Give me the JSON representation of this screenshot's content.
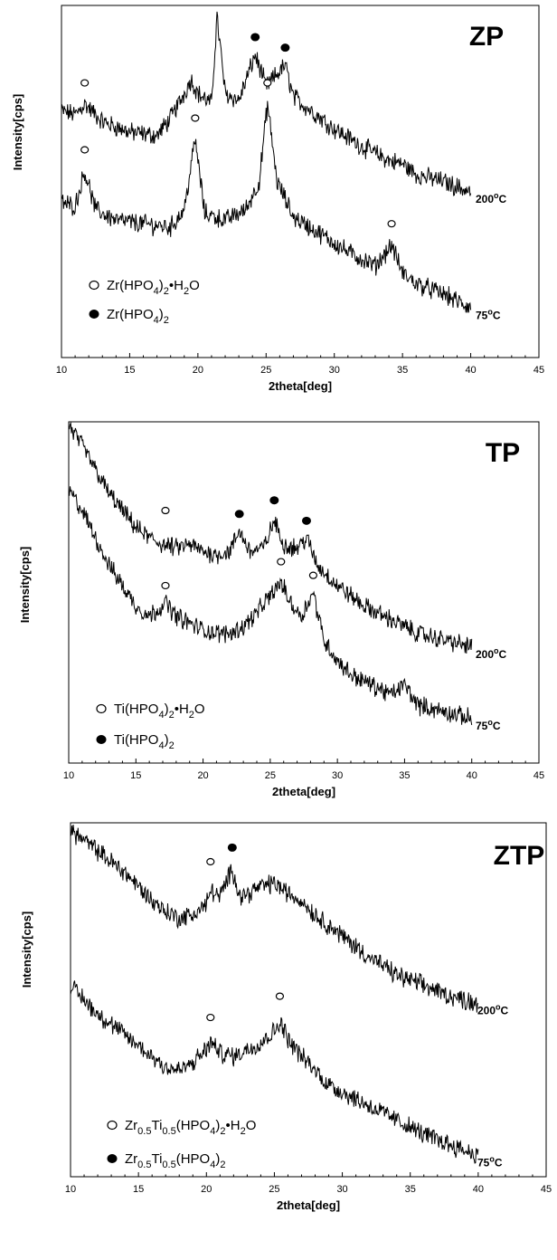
{
  "chart_data": [
    {
      "type": "line",
      "panel_label": "ZP",
      "xlabel": "2theta[deg]",
      "ylabel": "Intensity[cps]",
      "xlim": [
        10,
        45
      ],
      "xticks": [
        10,
        15,
        20,
        25,
        30,
        35,
        40,
        45
      ],
      "grid": false,
      "series": [
        {
          "name": "200°C",
          "temp_label": "200",
          "x": [
            10,
            11,
            11.7,
            13,
            15,
            17,
            18,
            19,
            19.5,
            20,
            21,
            21.4,
            22,
            23,
            24.2,
            25,
            26.4,
            27,
            28,
            30,
            32,
            34,
            35,
            36,
            37,
            38,
            40
          ],
          "y": [
            0.7,
            0.69,
            0.72,
            0.67,
            0.64,
            0.63,
            0.68,
            0.75,
            0.79,
            0.75,
            0.72,
            0.97,
            0.75,
            0.73,
            0.86,
            0.77,
            0.83,
            0.74,
            0.71,
            0.65,
            0.6,
            0.56,
            0.55,
            0.52,
            0.51,
            0.5,
            0.47
          ]
        },
        {
          "name": "75°C",
          "temp_label": "75",
          "x": [
            10,
            11,
            11.7,
            12.5,
            14,
            16,
            18,
            19,
            19.8,
            20.5,
            22,
            23.5,
            24.5,
            25.1,
            25.8,
            27,
            29,
            31,
            33,
            34.2,
            35,
            36,
            38,
            40
          ],
          "y": [
            0.44,
            0.43,
            0.53,
            0.42,
            0.39,
            0.38,
            0.37,
            0.42,
            0.62,
            0.41,
            0.39,
            0.42,
            0.5,
            0.72,
            0.5,
            0.4,
            0.35,
            0.3,
            0.26,
            0.32,
            0.24,
            0.21,
            0.18,
            0.14
          ]
        }
      ],
      "markers": [
        {
          "type": "open",
          "x": 11.7,
          "y": 0.78
        },
        {
          "type": "filled",
          "x": 21.4,
          "y": 1.03
        },
        {
          "type": "filled",
          "x": 24.2,
          "y": 0.91
        },
        {
          "type": "filled",
          "x": 26.4,
          "y": 0.88
        },
        {
          "type": "open",
          "x": 11.7,
          "y": 0.59
        },
        {
          "type": "open",
          "x": 19.8,
          "y": 0.68
        },
        {
          "type": "open",
          "x": 25.1,
          "y": 0.78
        },
        {
          "type": "open",
          "x": 34.2,
          "y": 0.38
        }
      ],
      "legend": [
        {
          "type": "open",
          "parts": [
            [
              "Zr(HPO",
              "n"
            ],
            [
              "4",
              "sub"
            ],
            [
              ")",
              "n"
            ],
            [
              "2",
              "sub"
            ],
            [
              "•H",
              "n"
            ],
            [
              "2",
              "sub"
            ],
            [
              "O",
              "n"
            ]
          ]
        },
        {
          "type": "filled",
          "parts": [
            [
              "Zr(HPO",
              "n"
            ],
            [
              "4",
              "sub"
            ],
            [
              ")",
              "n"
            ],
            [
              "2",
              "sub"
            ]
          ]
        }
      ]
    },
    {
      "type": "line",
      "panel_label": "TP",
      "xlabel": "2theta[deg]",
      "ylabel": "Intensity[cps]",
      "xlim": [
        10,
        45
      ],
      "xticks": [
        10,
        15,
        20,
        25,
        30,
        35,
        40,
        45
      ],
      "grid": false,
      "series": [
        {
          "name": "200°C",
          "temp_label": "200",
          "x": [
            10,
            11,
            12,
            13,
            14,
            15,
            16,
            17,
            18,
            19,
            20,
            21,
            22,
            22.7,
            23.5,
            24.5,
            25.3,
            26,
            27,
            27.7,
            28.5,
            30,
            32,
            34,
            36,
            38,
            40
          ],
          "y": [
            0.99,
            0.93,
            0.86,
            0.79,
            0.74,
            0.69,
            0.66,
            0.64,
            0.63,
            0.64,
            0.62,
            0.61,
            0.62,
            0.68,
            0.62,
            0.63,
            0.71,
            0.64,
            0.63,
            0.66,
            0.58,
            0.52,
            0.46,
            0.42,
            0.38,
            0.36,
            0.34
          ]
        },
        {
          "name": "75°C",
          "temp_label": "75",
          "x": [
            10,
            11,
            12,
            13,
            14,
            15,
            16,
            17.2,
            18,
            19,
            20,
            21,
            22,
            23,
            24,
            25,
            25.8,
            26.5,
            27.3,
            28.2,
            29,
            30,
            31,
            32,
            33,
            34,
            35,
            36,
            38,
            40
          ],
          "y": [
            0.8,
            0.74,
            0.66,
            0.58,
            0.52,
            0.46,
            0.43,
            0.47,
            0.43,
            0.41,
            0.39,
            0.38,
            0.38,
            0.4,
            0.44,
            0.49,
            0.53,
            0.47,
            0.43,
            0.5,
            0.36,
            0.3,
            0.26,
            0.24,
            0.22,
            0.2,
            0.23,
            0.17,
            0.15,
            0.13
          ]
        }
      ],
      "markers": [
        {
          "type": "open",
          "x": 17.2,
          "y": 0.74
        },
        {
          "type": "filled",
          "x": 22.7,
          "y": 0.73
        },
        {
          "type": "filled",
          "x": 25.3,
          "y": 0.77
        },
        {
          "type": "filled",
          "x": 27.7,
          "y": 0.71
        },
        {
          "type": "open",
          "x": 17.2,
          "y": 0.52
        },
        {
          "type": "open",
          "x": 25.8,
          "y": 0.59
        },
        {
          "type": "open",
          "x": 28.2,
          "y": 0.55
        }
      ],
      "legend": [
        {
          "type": "open",
          "parts": [
            [
              "Ti(HPO",
              "n"
            ],
            [
              "4",
              "sub"
            ],
            [
              ")",
              "n"
            ],
            [
              "2",
              "sub"
            ],
            [
              "•H",
              "n"
            ],
            [
              "2",
              "sub"
            ],
            [
              "O",
              "n"
            ]
          ]
        },
        {
          "type": "filled",
          "parts": [
            [
              "Ti(HPO",
              "n"
            ],
            [
              "4",
              "sub"
            ],
            [
              ")",
              "n"
            ],
            [
              "2",
              "sub"
            ]
          ]
        }
      ]
    },
    {
      "type": "line",
      "panel_label": "ZTP",
      "xlabel": "2theta[deg]",
      "ylabel": "Intensity[cps]",
      "xlim": [
        10,
        45
      ],
      "xticks": [
        10,
        15,
        20,
        25,
        30,
        35,
        40,
        45
      ],
      "grid": false,
      "series": [
        {
          "name": "200°C",
          "temp_label": "200",
          "x": [
            10,
            11,
            12,
            13,
            14,
            15,
            16,
            17,
            18,
            19,
            20,
            20.3,
            21,
            21.9,
            22.5,
            23,
            24,
            25,
            26,
            27,
            28,
            30,
            32,
            34,
            36,
            38,
            40
          ],
          "y": [
            0.98,
            0.95,
            0.92,
            0.89,
            0.86,
            0.82,
            0.78,
            0.75,
            0.73,
            0.74,
            0.77,
            0.81,
            0.79,
            0.87,
            0.79,
            0.8,
            0.82,
            0.83,
            0.8,
            0.78,
            0.74,
            0.68,
            0.62,
            0.57,
            0.54,
            0.51,
            0.49
          ]
        },
        {
          "name": "75°C",
          "temp_label": "75",
          "x": [
            10,
            11,
            12,
            13,
            14,
            15,
            16,
            17,
            18,
            19,
            20,
            20.3,
            21,
            22,
            23,
            24,
            25,
            25.4,
            26,
            27,
            28,
            29,
            30,
            32,
            34,
            36,
            38,
            40
          ],
          "y": [
            0.54,
            0.5,
            0.46,
            0.43,
            0.4,
            0.37,
            0.34,
            0.31,
            0.3,
            0.32,
            0.36,
            0.38,
            0.35,
            0.34,
            0.36,
            0.38,
            0.41,
            0.44,
            0.39,
            0.34,
            0.3,
            0.26,
            0.24,
            0.2,
            0.16,
            0.12,
            0.09,
            0.06
          ]
        }
      ],
      "markers": [
        {
          "type": "open",
          "x": 20.3,
          "y": 0.89
        },
        {
          "type": "filled",
          "x": 21.9,
          "y": 0.93
        },
        {
          "type": "open",
          "x": 20.3,
          "y": 0.45
        },
        {
          "type": "open",
          "x": 25.4,
          "y": 0.51
        }
      ],
      "legend": [
        {
          "type": "open",
          "parts": [
            [
              "Zr",
              "n"
            ],
            [
              "0.5",
              "sub"
            ],
            [
              "Ti",
              "n"
            ],
            [
              "0.5",
              "sub"
            ],
            [
              "(HPO",
              "n"
            ],
            [
              "4",
              "sub"
            ],
            [
              ")",
              "n"
            ],
            [
              "2",
              "sub"
            ],
            [
              "•H",
              "n"
            ],
            [
              "2",
              "sub"
            ],
            [
              "O",
              "n"
            ]
          ]
        },
        {
          "type": "filled",
          "parts": [
            [
              "Zr",
              "n"
            ],
            [
              "0.5",
              "sub"
            ],
            [
              "Ti",
              "n"
            ],
            [
              "0.5",
              "sub"
            ],
            [
              "(HPO",
              "n"
            ],
            [
              "4",
              "sub"
            ],
            [
              ")",
              "n"
            ],
            [
              "2",
              "sub"
            ]
          ]
        }
      ]
    }
  ]
}
